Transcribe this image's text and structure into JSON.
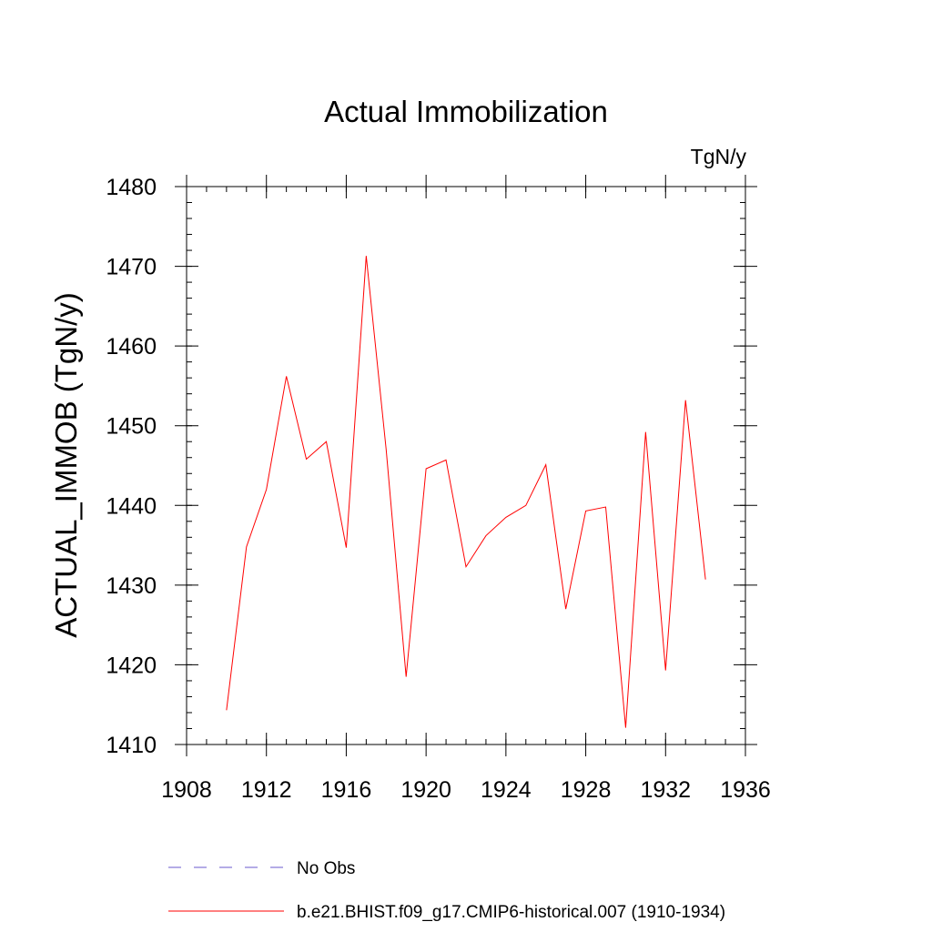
{
  "chart_data": {
    "type": "line",
    "title": "Actual Immobilization",
    "units_label": "TgN/y",
    "ylabel": "ACTUAL_IMMOB  (TgN/y)",
    "xlabel": "",
    "xlim": [
      1908,
      1936
    ],
    "ylim": [
      1410,
      1480
    ],
    "x_ticks": [
      1908,
      1912,
      1916,
      1920,
      1924,
      1928,
      1932,
      1936
    ],
    "y_ticks": [
      1410,
      1420,
      1430,
      1440,
      1450,
      1460,
      1470,
      1480
    ],
    "x_minor_step": 1,
    "y_minor_step": 2,
    "grid": false,
    "legend_position": "bottom",
    "series": [
      {
        "name": "b.e21.BHIST.f09_g17.CMIP6-historical.007 (1910-1934)",
        "color": "#ff0000",
        "style": "solid",
        "x": [
          1910,
          1911,
          1912,
          1913,
          1914,
          1915,
          1916,
          1917,
          1918,
          1919,
          1920,
          1921,
          1922,
          1923,
          1924,
          1925,
          1926,
          1927,
          1928,
          1929,
          1930,
          1931,
          1932,
          1933,
          1934
        ],
        "values": [
          1414.3,
          1434.8,
          1442.0,
          1456.2,
          1445.8,
          1448.0,
          1434.7,
          1471.3,
          1447.0,
          1418.5,
          1444.6,
          1445.7,
          1432.3,
          1436.2,
          1438.5,
          1440.0,
          1445.1,
          1427.0,
          1439.3,
          1439.8,
          1412.1,
          1449.2,
          1419.3,
          1453.2,
          1430.7
        ]
      }
    ],
    "legend": [
      {
        "label": "No Obs",
        "color": "#6a5acd",
        "style": "dashed"
      },
      {
        "label": "b.e21.BHIST.f09_g17.CMIP6-historical.007 (1910-1934)",
        "color": "#ff0000",
        "style": "solid"
      }
    ]
  }
}
